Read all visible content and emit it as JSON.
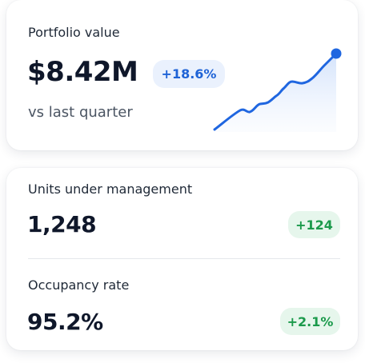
{
  "portfolio": {
    "label": "Portfolio value",
    "value": "$8.42M",
    "change": "+18.6%",
    "note": "vs last quarter"
  },
  "metrics": [
    {
      "label": "Units under management",
      "value": "1,248",
      "change": "+124"
    },
    {
      "label": "Occupancy rate",
      "value": "95.2%",
      "change": "+2.1%"
    }
  ]
}
